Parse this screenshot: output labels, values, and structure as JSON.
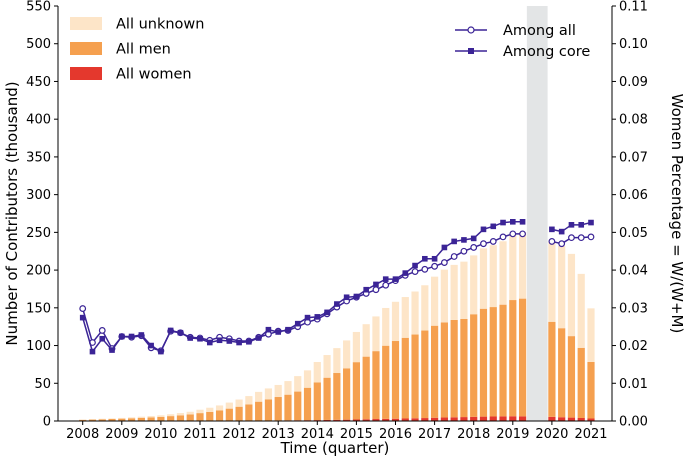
{
  "chart_data": {
    "type": "bar",
    "xlabel": "Time (quarter)",
    "ylabel_left": "Number of Contributors (thousand)",
    "ylabel_right": "Women Percentage = W/(W+M)",
    "ylim_left": [
      0,
      550
    ],
    "ylim_right": [
      0,
      0.11
    ],
    "left_ticks": [
      "0",
      "50",
      "100",
      "150",
      "200",
      "250",
      "300",
      "350",
      "400",
      "450",
      "500",
      "550"
    ],
    "right_ticks": [
      "0.00",
      "0.01",
      "0.02",
      "0.03",
      "0.04",
      "0.05",
      "0.06",
      "0.07",
      "0.08",
      "0.09",
      "0.10",
      "0.11"
    ],
    "x_tick_labels": [
      "2008",
      "2009",
      "2010",
      "2011",
      "2012",
      "2013",
      "2014",
      "2015",
      "2016",
      "2017",
      "2018",
      "2019",
      "2020",
      "2021"
    ],
    "grid": false,
    "gap_period": "2019 Q3 – 2019 Q4",
    "colors": {
      "unknown": "#fde5c8",
      "men": "#f5a04f",
      "women": "#e4382d",
      "line": "#3b2496",
      "gap": "#e3e5e6"
    },
    "legend_bars": [
      {
        "key": "unknown",
        "label": "All unknown"
      },
      {
        "key": "men",
        "label": "All men"
      },
      {
        "key": "women",
        "label": "All women"
      }
    ],
    "legend_lines": [
      {
        "key": "among_all",
        "label": "Among all",
        "marker": "circle-open"
      },
      {
        "key": "among_core",
        "label": "Among core",
        "marker": "square-filled"
      }
    ],
    "quarters": [
      "2008 Q1",
      "2008 Q2",
      "2008 Q3",
      "2008 Q4",
      "2009 Q1",
      "2009 Q2",
      "2009 Q3",
      "2009 Q4",
      "2010 Q1",
      "2010 Q2",
      "2010 Q3",
      "2010 Q4",
      "2011 Q1",
      "2011 Q2",
      "2011 Q3",
      "2011 Q4",
      "2012 Q1",
      "2012 Q2",
      "2012 Q3",
      "2012 Q4",
      "2013 Q1",
      "2013 Q2",
      "2013 Q3",
      "2013 Q4",
      "2014 Q1",
      "2014 Q2",
      "2014 Q3",
      "2014 Q4",
      "2015 Q1",
      "2015 Q2",
      "2015 Q3",
      "2015 Q4",
      "2016 Q1",
      "2016 Q2",
      "2016 Q3",
      "2016 Q4",
      "2017 Q1",
      "2017 Q2",
      "2017 Q3",
      "2017 Q4",
      "2018 Q1",
      "2018 Q2",
      "2018 Q3",
      "2018 Q4",
      "2019 Q1",
      "2019 Q2",
      "2019 Q3",
      "2019 Q4",
      "2020 Q1",
      "2020 Q2",
      "2020 Q3",
      "2020 Q4",
      "2021 Q1"
    ],
    "series": [
      {
        "name": "All women",
        "values": [
          0.05,
          0.06,
          0.07,
          0.08,
          0.1,
          0.11,
          0.12,
          0.14,
          0.15,
          0.17,
          0.19,
          0.22,
          0.26,
          0.3,
          0.34,
          0.4,
          0.45,
          0.52,
          0.6,
          0.68,
          0.78,
          0.9,
          1.0,
          1.1,
          1.2,
          1.4,
          1.6,
          1.8,
          2.0,
          2.3,
          2.6,
          2.8,
          3.0,
          3.3,
          3.6,
          3.9,
          4.3,
          4.6,
          4.9,
          5.2,
          5.5,
          5.8,
          6.0,
          6.2,
          6.3,
          6.2,
          null,
          null,
          5.5,
          5.0,
          4.5,
          4.0,
          3.3
        ]
      },
      {
        "name": "All men",
        "values": [
          1.5,
          1.8,
          2.2,
          2.6,
          3.0,
          3.5,
          4.1,
          4.7,
          5.4,
          6.3,
          7.3,
          8.5,
          10.2,
          11.8,
          13.8,
          16.0,
          18.5,
          21.5,
          25.0,
          28.0,
          31.0,
          34.0,
          38.0,
          43.0,
          50.0,
          56.0,
          62.0,
          68.0,
          76.0,
          83.0,
          90.0,
          97.0,
          103.0,
          107.0,
          111.0,
          116.0,
          122.0,
          126.0,
          129.0,
          130.0,
          136.0,
          143.0,
          145.0,
          148.0,
          154.0,
          156.0,
          null,
          null,
          126.0,
          118.0,
          108.0,
          93.0,
          75.0
        ]
      },
      {
        "name": "All unknown",
        "values": [
          0.5,
          0.6,
          0.7,
          0.8,
          1.0,
          1.2,
          1.5,
          1.8,
          2.0,
          2.5,
          3.0,
          3.5,
          4.5,
          5.5,
          6.5,
          8.0,
          9.5,
          11.0,
          13.0,
          14.5,
          16.0,
          18.0,
          20.5,
          23.0,
          27.0,
          30.0,
          33.0,
          37.0,
          40.0,
          43.0,
          46.0,
          50.0,
          52.0,
          54.0,
          57.0,
          60.0,
          65.0,
          70.0,
          73.0,
          76.0,
          78.0,
          80.0,
          82.0,
          84.0,
          86.0,
          88.0,
          null,
          null,
          106.0,
          109.0,
          109.0,
          98.0,
          71.0
        ]
      },
      {
        "name": "Among all",
        "values": [
          0.0298,
          0.0208,
          0.024,
          0.0192,
          0.0224,
          0.0222,
          0.0226,
          0.0194,
          0.0186,
          0.0238,
          0.0234,
          0.0222,
          0.022,
          0.0214,
          0.0222,
          0.0218,
          0.0212,
          0.0212,
          0.0222,
          0.023,
          0.0238,
          0.024,
          0.025,
          0.0262,
          0.027,
          0.0284,
          0.0302,
          0.0318,
          0.0328,
          0.0338,
          0.0348,
          0.036,
          0.0372,
          0.0386,
          0.0396,
          0.0402,
          0.041,
          0.042,
          0.0436,
          0.045,
          0.046,
          0.047,
          0.0476,
          0.0488,
          0.0496,
          0.0496,
          null,
          null,
          0.0476,
          0.047,
          0.0486,
          0.0486,
          0.0488
        ]
      },
      {
        "name": "Among core",
        "values": [
          0.0274,
          0.0184,
          0.0218,
          0.0188,
          0.0224,
          0.0224,
          0.0228,
          0.02,
          0.0184,
          0.024,
          0.0234,
          0.022,
          0.0218,
          0.0208,
          0.0214,
          0.0212,
          0.0208,
          0.021,
          0.022,
          0.0242,
          0.0236,
          0.0242,
          0.0258,
          0.0274,
          0.0276,
          0.0288,
          0.031,
          0.0328,
          0.033,
          0.0348,
          0.0362,
          0.0376,
          0.0376,
          0.0392,
          0.0412,
          0.043,
          0.043,
          0.046,
          0.0476,
          0.048,
          0.0484,
          0.0508,
          0.0516,
          0.0526,
          0.0528,
          0.0528,
          null,
          null,
          0.0508,
          0.0502,
          0.052,
          0.052,
          0.0526
        ]
      }
    ]
  }
}
